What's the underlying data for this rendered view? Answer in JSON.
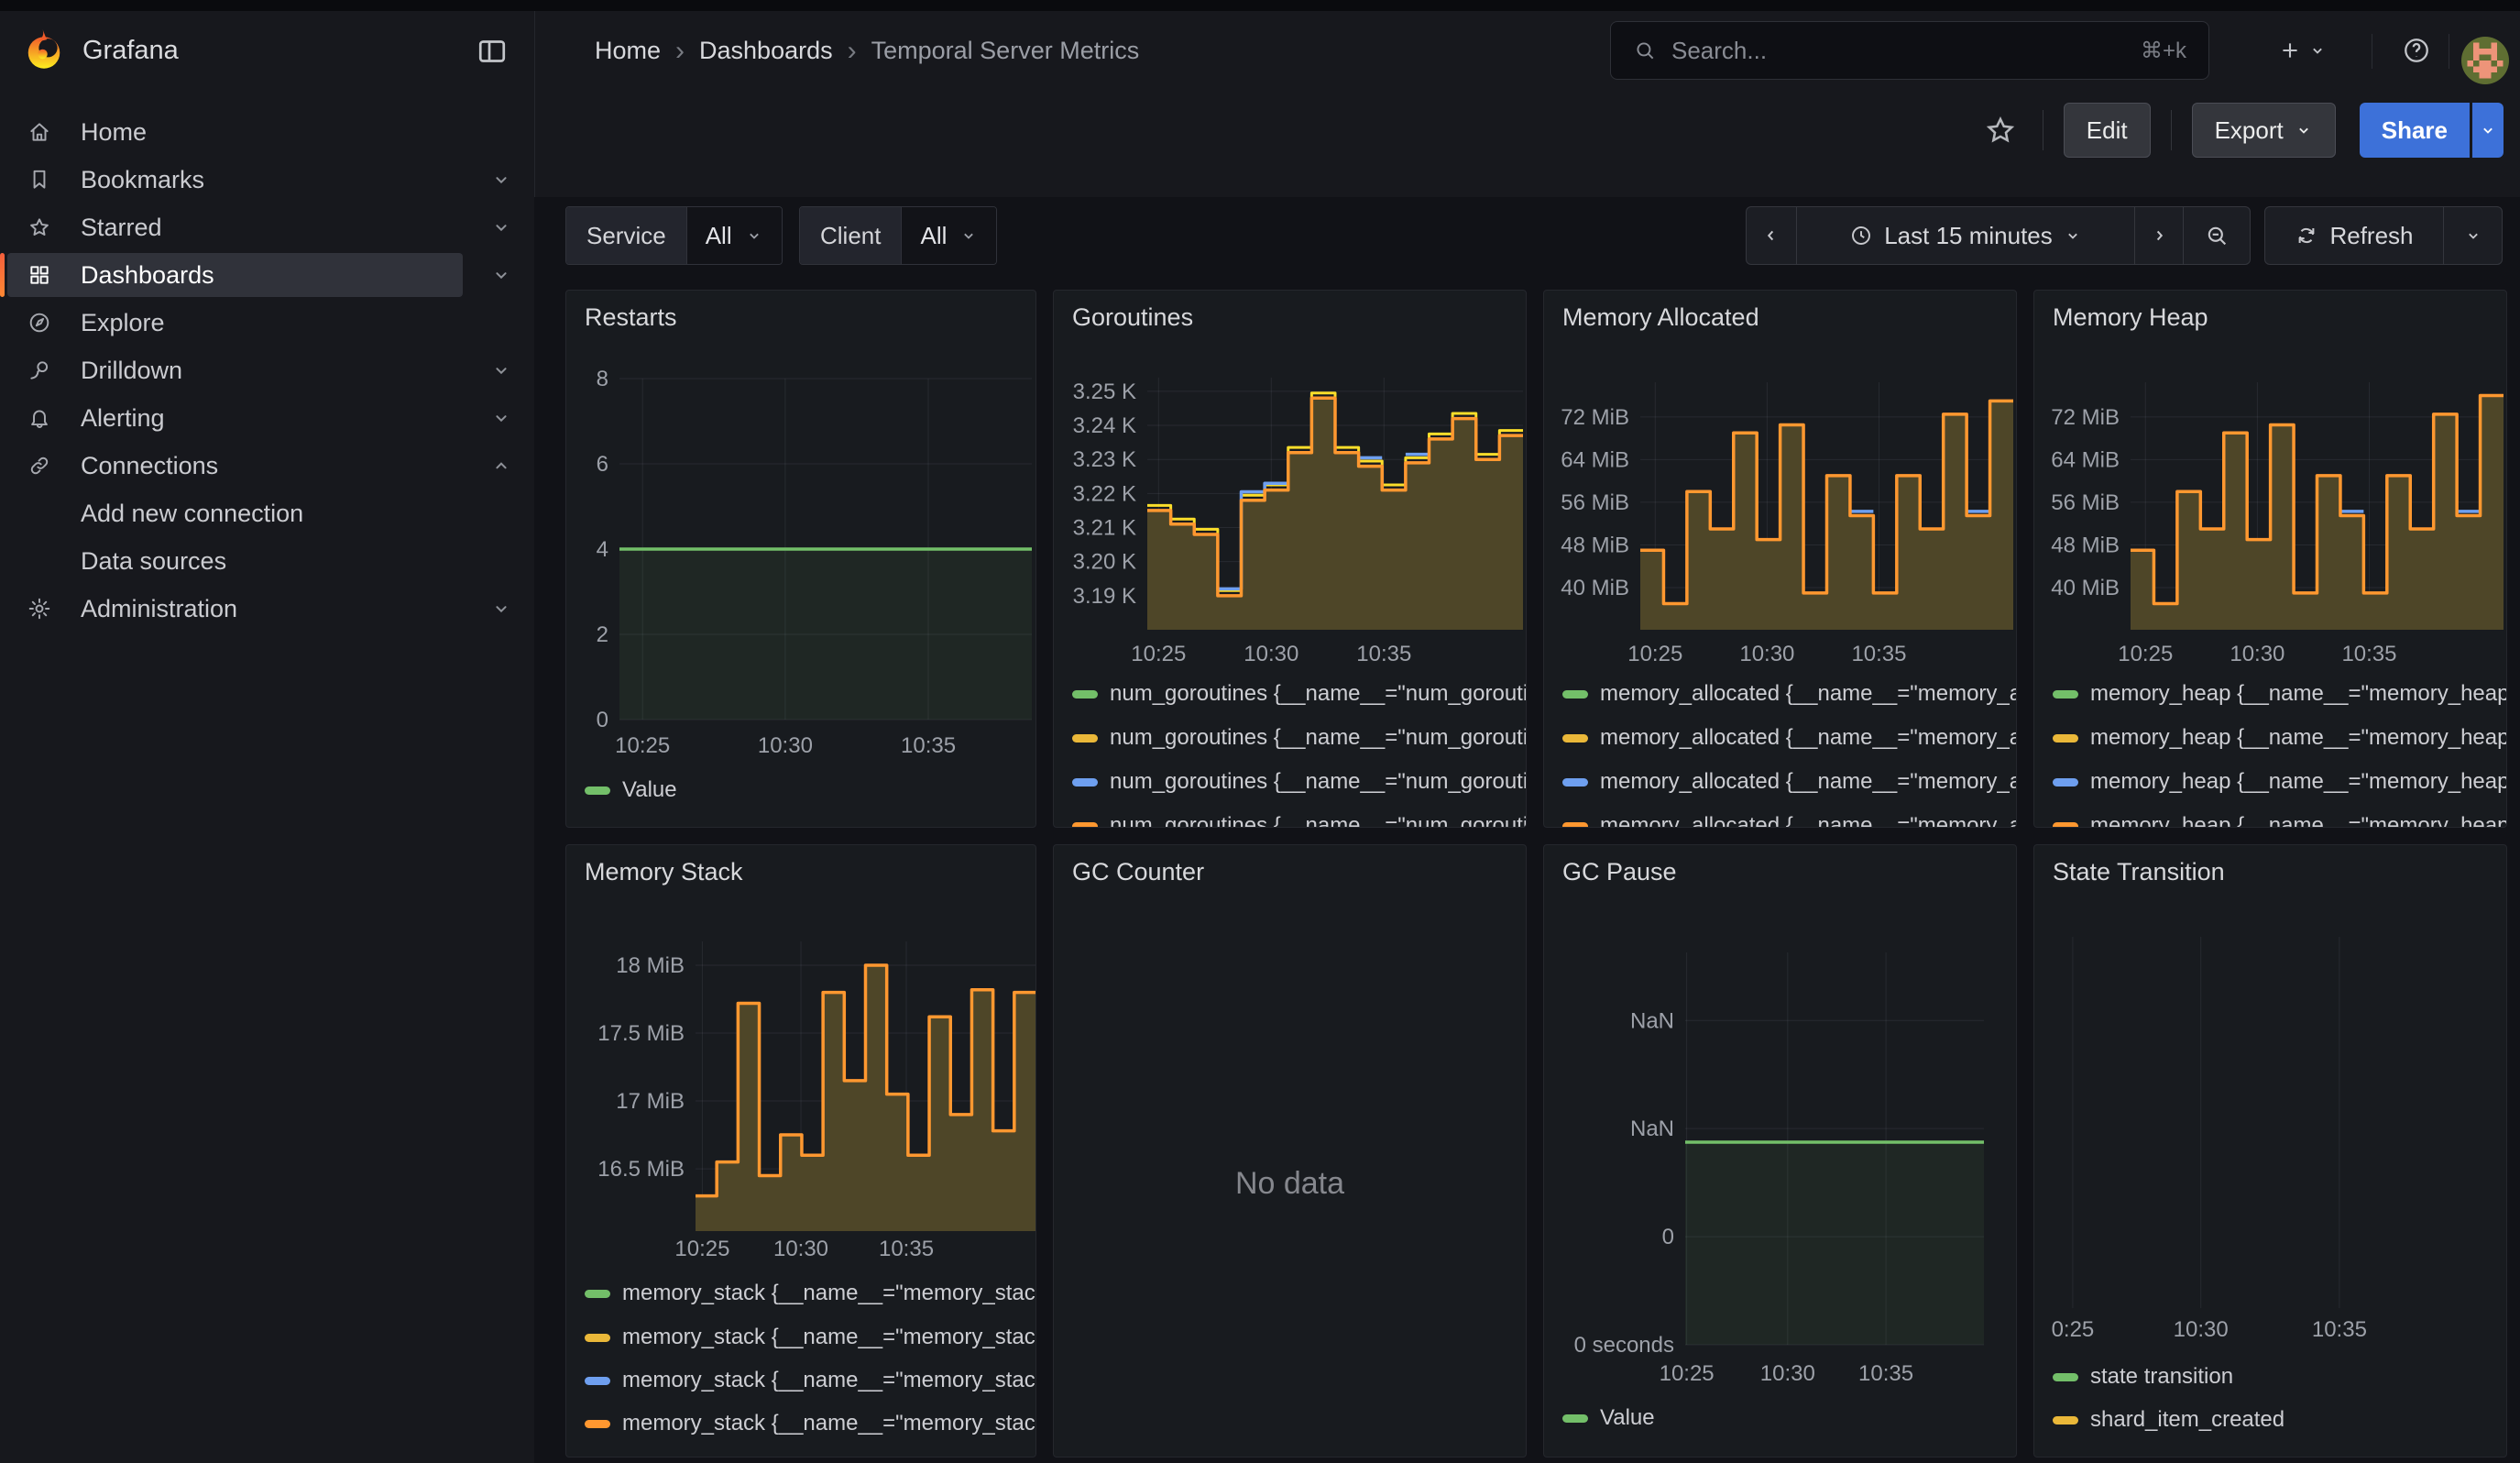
{
  "nav": {
    "brand": "Grafana",
    "breadcrumb": [
      "Home",
      "Dashboards",
      "Temporal Server Metrics"
    ],
    "search": {
      "placeholder": "Search...",
      "shortcut": "⌘+k"
    }
  },
  "toolbar": {
    "edit": "Edit",
    "export": "Export",
    "share": "Share"
  },
  "filters": [
    {
      "label": "Service",
      "value": "All"
    },
    {
      "label": "Client",
      "value": "All"
    }
  ],
  "timebar": {
    "range": "Last 15 minutes",
    "refresh": "Refresh"
  },
  "sidebar": {
    "items": [
      {
        "label": "Home",
        "icon": "home"
      },
      {
        "label": "Bookmarks",
        "icon": "bookmark",
        "chevron": "down"
      },
      {
        "label": "Starred",
        "icon": "star",
        "chevron": "down"
      },
      {
        "label": "Dashboards",
        "icon": "apps",
        "chevron": "down",
        "active": true
      },
      {
        "label": "Explore",
        "icon": "compass"
      },
      {
        "label": "Drilldown",
        "icon": "drilldown",
        "chevron": "down"
      },
      {
        "label": "Alerting",
        "icon": "bell",
        "chevron": "down"
      },
      {
        "label": "Connections",
        "icon": "link",
        "chevron": "up"
      },
      {
        "label": "Add new connection",
        "indent": true
      },
      {
        "label": "Data sources",
        "indent": true
      },
      {
        "label": "Administration",
        "icon": "cog",
        "chevron": "down"
      }
    ]
  },
  "colors": {
    "green": "#73BF69",
    "yellow": "#EAB839",
    "yellow_line": "#FADE2A",
    "blue": "#6E9FEF",
    "orange": "#FF9830",
    "fill_olive": "#4E4628",
    "share_blue": "#3D71D9",
    "accent_orange": "#FF8833",
    "panel_bg": "#181B1F"
  },
  "chart_data": [
    {
      "type": "line",
      "title": "Restarts",
      "plot": {
        "l": 58,
        "t": 96,
        "r": 508,
        "b": 468
      },
      "ylim": [
        0,
        8
      ],
      "grid_h": true,
      "yticks": [
        {
          "v": 8,
          "label": "8"
        },
        {
          "v": 6,
          "label": "6"
        },
        {
          "v": 4,
          "label": "4"
        },
        {
          "v": 2,
          "label": "2"
        },
        {
          "v": 0,
          "label": "0"
        }
      ],
      "xticks": [
        {
          "f": 0.056,
          "label": "10:25"
        },
        {
          "f": 0.402,
          "label": "10:30"
        },
        {
          "f": 0.749,
          "label": "10:35"
        }
      ],
      "xlabel_y": 496,
      "series": [
        {
          "name": "Value",
          "color": "#73BF69",
          "width": 3.5,
          "fill": "rgba(115,191,105,0.08)",
          "values": [
            4
          ]
        }
      ],
      "legend": [
        {
          "color": "#73BF69",
          "label": "Value",
          "y": 545
        }
      ]
    },
    {
      "type": "area",
      "title": "Goroutines",
      "plot": {
        "l": 102,
        "t": 95,
        "r": 512,
        "b": 370
      },
      "ylim": [
        3180,
        3254
      ],
      "grid_h": true,
      "yticks": [
        {
          "v": 3250,
          "label": "3.25 K"
        },
        {
          "v": 3240,
          "label": "3.24 K"
        },
        {
          "v": 3230,
          "label": "3.23 K"
        },
        {
          "v": 3220,
          "label": "3.22 K"
        },
        {
          "v": 3210,
          "label": "3.21 K"
        },
        {
          "v": 3200,
          "label": "3.20 K"
        },
        {
          "v": 3190,
          "label": "3.19 K"
        }
      ],
      "xticks": [
        {
          "f": 0.03,
          "label": "10:25"
        },
        {
          "f": 0.33,
          "label": "10:30"
        },
        {
          "f": 0.63,
          "label": "10:35"
        }
      ],
      "xlabel_y": 396,
      "series": [
        {
          "name": "num_goroutines (fill)",
          "color": "#FF9830",
          "width": 3.5,
          "fill": "#4E4628",
          "values": [
            3215,
            3211,
            3208,
            3190,
            3218,
            3221,
            3232,
            3248,
            3232,
            3228,
            3221,
            3229,
            3236,
            3242,
            3230,
            3237
          ]
        },
        {
          "name": "num_goroutines (blue)",
          "color": "#6E9FEF",
          "width": 3.5,
          "values": [
            null,
            null,
            null,
            3192,
            3220.5,
            3223,
            null,
            null,
            null,
            3230.5,
            null,
            3231.5,
            null,
            null,
            null,
            null
          ]
        },
        {
          "name": "num_goroutines (yellow)",
          "color": "#FADE2A",
          "width": 3,
          "values": [
            3216.5,
            3212.5,
            3209.5,
            3191.5,
            3219.5,
            3222.5,
            3233.5,
            3249.5,
            3233.5,
            3229.5,
            3222.5,
            3230.5,
            3237.5,
            3243.5,
            3231.5,
            3238.5
          ]
        }
      ],
      "draw_order": [
        2,
        1,
        0
      ],
      "legend": [
        {
          "color": "#73BF69",
          "label": "num_goroutines {__name__=\"num_goroutines\"",
          "y": 440
        },
        {
          "color": "#EAB839",
          "label": "num_goroutines {__name__=\"num_goroutines\"",
          "y": 488
        },
        {
          "color": "#6E9FEF",
          "label": "num_goroutines {__name__=\"num_goroutines\"",
          "y": 536
        },
        {
          "color": "#FF9830",
          "label": "num_goroutines {__name__=\"num_goroutines\"",
          "y": 584
        }
      ]
    },
    {
      "type": "area",
      "title": "Memory Allocated",
      "plot": {
        "l": 105,
        "t": 100,
        "r": 512,
        "b": 370
      },
      "ylim": [
        32.1,
        78.5
      ],
      "grid_h": true,
      "yticks": [
        {
          "v": 72,
          "label": "72 MiB"
        },
        {
          "v": 64,
          "label": "64 MiB"
        },
        {
          "v": 56,
          "label": "56 MiB"
        },
        {
          "v": 48,
          "label": "48 MiB"
        },
        {
          "v": 40,
          "label": "40 MiB"
        }
      ],
      "xticks": [
        {
          "f": 0.04,
          "label": "10:25"
        },
        {
          "f": 0.34,
          "label": "10:30"
        },
        {
          "f": 0.64,
          "label": "10:35"
        }
      ],
      "xlabel_y": 396,
      "series": [
        {
          "name": "memory_allocated",
          "color": "#FF9830",
          "width": 3.5,
          "fill": "#4E4628",
          "values": [
            47,
            37,
            58,
            51,
            69,
            49,
            70.5,
            39,
            61,
            53.5,
            39,
            61,
            51,
            72.5,
            53.5,
            75
          ]
        },
        {
          "name": "memory_allocated (blue)",
          "color": "#6E9FEF",
          "width": 3.5,
          "values": [
            null,
            null,
            null,
            null,
            null,
            null,
            null,
            null,
            null,
            54.3,
            null,
            null,
            null,
            null,
            54.3,
            null
          ]
        }
      ],
      "draw_order": [
        1,
        0
      ],
      "legend": [
        {
          "color": "#73BF69",
          "label": "memory_allocated {__name__=\"memory_allocated\"",
          "y": 440
        },
        {
          "color": "#EAB839",
          "label": "memory_allocated {__name__=\"memory_allocated\"",
          "y": 488
        },
        {
          "color": "#6E9FEF",
          "label": "memory_allocated {__name__=\"memory_allocated\"",
          "y": 536
        },
        {
          "color": "#FF9830",
          "label": "memory_allocated {__name__=\"memory_allocated\"",
          "y": 584
        }
      ]
    },
    {
      "type": "area",
      "title": "Memory Heap",
      "plot": {
        "l": 105,
        "t": 100,
        "r": 512,
        "b": 370
      },
      "ylim": [
        32.1,
        78.5
      ],
      "grid_h": true,
      "yticks": [
        {
          "v": 72,
          "label": "72 MiB"
        },
        {
          "v": 64,
          "label": "64 MiB"
        },
        {
          "v": 56,
          "label": "56 MiB"
        },
        {
          "v": 48,
          "label": "48 MiB"
        },
        {
          "v": 40,
          "label": "40 MiB"
        }
      ],
      "xticks": [
        {
          "f": 0.04,
          "label": "10:25"
        },
        {
          "f": 0.34,
          "label": "10:30"
        },
        {
          "f": 0.64,
          "label": "10:35"
        }
      ],
      "xlabel_y": 396,
      "series": [
        {
          "name": "memory_heap",
          "color": "#FF9830",
          "width": 3.5,
          "fill": "#4E4628",
          "values": [
            47,
            37,
            58,
            51,
            69,
            49,
            70.5,
            39,
            61,
            53.5,
            39,
            61,
            51,
            72.5,
            53.5,
            76
          ]
        },
        {
          "name": "memory_heap (blue)",
          "color": "#6E9FEF",
          "width": 3.5,
          "values": [
            null,
            null,
            null,
            null,
            null,
            null,
            null,
            null,
            null,
            54.3,
            null,
            null,
            null,
            null,
            54.3,
            null
          ]
        }
      ],
      "draw_order": [
        1,
        0
      ],
      "legend": [
        {
          "color": "#73BF69",
          "label": "memory_heap {__name__=\"memory_heap\"",
          "y": 440
        },
        {
          "color": "#EAB839",
          "label": "memory_heap {__name__=\"memory_heap\"",
          "y": 488
        },
        {
          "color": "#6E9FEF",
          "label": "memory_heap {__name__=\"memory_heap\"",
          "y": 536
        },
        {
          "color": "#FF9830",
          "label": "memory_heap {__name__=\"memory_heap\"",
          "y": 584
        }
      ]
    },
    {
      "type": "area",
      "title": "Memory Stack",
      "plot": {
        "l": 141,
        "t": 105,
        "r": 512,
        "b": 421
      },
      "ylim": [
        16.041,
        18.176
      ],
      "grid_h": true,
      "yticks": [
        {
          "v": 18,
          "label": "18 MiB"
        },
        {
          "v": 17.5,
          "label": "17.5 MiB"
        },
        {
          "v": 17,
          "label": "17 MiB"
        },
        {
          "v": 16.5,
          "label": "16.5 MiB"
        }
      ],
      "xticks": [
        {
          "f": 0.02,
          "label": "10:25"
        },
        {
          "f": 0.31,
          "label": "10:30"
        },
        {
          "f": 0.62,
          "label": "10:35"
        }
      ],
      "xlabel_y": 440,
      "series": [
        {
          "name": "memory_stack",
          "color": "#FF9830",
          "width": 3.5,
          "fill": "#4E4628",
          "values": [
            16.3,
            16.55,
            17.72,
            16.45,
            16.75,
            16.6,
            17.8,
            17.15,
            18.0,
            17.05,
            16.6,
            17.62,
            16.9,
            17.82,
            16.78,
            17.8
          ]
        }
      ],
      "draw_order": [
        0
      ],
      "legend": [
        {
          "color": "#73BF69",
          "label": "memory_stack {__name__=\"memory_stack\"",
          "y": 489
        },
        {
          "color": "#EAB839",
          "label": "memory_stack {__name__=\"memory_stack\"",
          "y": 537
        },
        {
          "color": "#6E9FEF",
          "label": "memory_stack {__name__=\"memory_stack\"",
          "y": 584
        },
        {
          "color": "#FF9830",
          "label": "memory_stack {__name__=\"memory_stack\"",
          "y": 631
        }
      ]
    },
    {
      "type": "none",
      "title": "GC Counter",
      "no_data": "No data"
    },
    {
      "type": "line",
      "title": "GC Pause",
      "plot": {
        "l": 154,
        "t": 117,
        "r": 480,
        "b": 545
      },
      "ylim": [
        0,
        3.63
      ],
      "grid_h": true,
      "yticks": [
        {
          "v": 3,
          "label": "NaN"
        },
        {
          "v": 2,
          "label": "NaN"
        },
        {
          "v": 1,
          "label": "0"
        },
        {
          "v": 0,
          "label": "0 seconds"
        }
      ],
      "xticks": [
        {
          "f": 0.005,
          "label": "10:25"
        },
        {
          "f": 0.343,
          "label": "10:30"
        },
        {
          "f": 0.672,
          "label": "10:35"
        }
      ],
      "xlabel_y": 576,
      "series": [
        {
          "name": "Value",
          "color": "#73BF69",
          "width": 3.5,
          "fill": "rgba(115,191,105,0.08)",
          "values": [
            1.874
          ]
        }
      ],
      "legend": [
        {
          "color": "#73BF69",
          "label": "Value",
          "y": 625
        }
      ]
    },
    {
      "type": "line",
      "title": "State Transition",
      "plot": {
        "l": 30,
        "t": 100,
        "r": 507,
        "b": 505
      },
      "ylim": [
        0,
        1
      ],
      "grid_h": false,
      "yticks": [],
      "xticks": [
        {
          "f": 0.025,
          "label": "0:25"
        },
        {
          "f": 0.318,
          "label": "10:30"
        },
        {
          "f": 0.635,
          "label": "10:35"
        }
      ],
      "xlabel_y": 528,
      "series": [],
      "legend": [
        {
          "color": "#73BF69",
          "label": "state transition",
          "y": 580
        },
        {
          "color": "#EAB839",
          "label": "shard_item_created",
          "y": 627
        }
      ]
    }
  ]
}
